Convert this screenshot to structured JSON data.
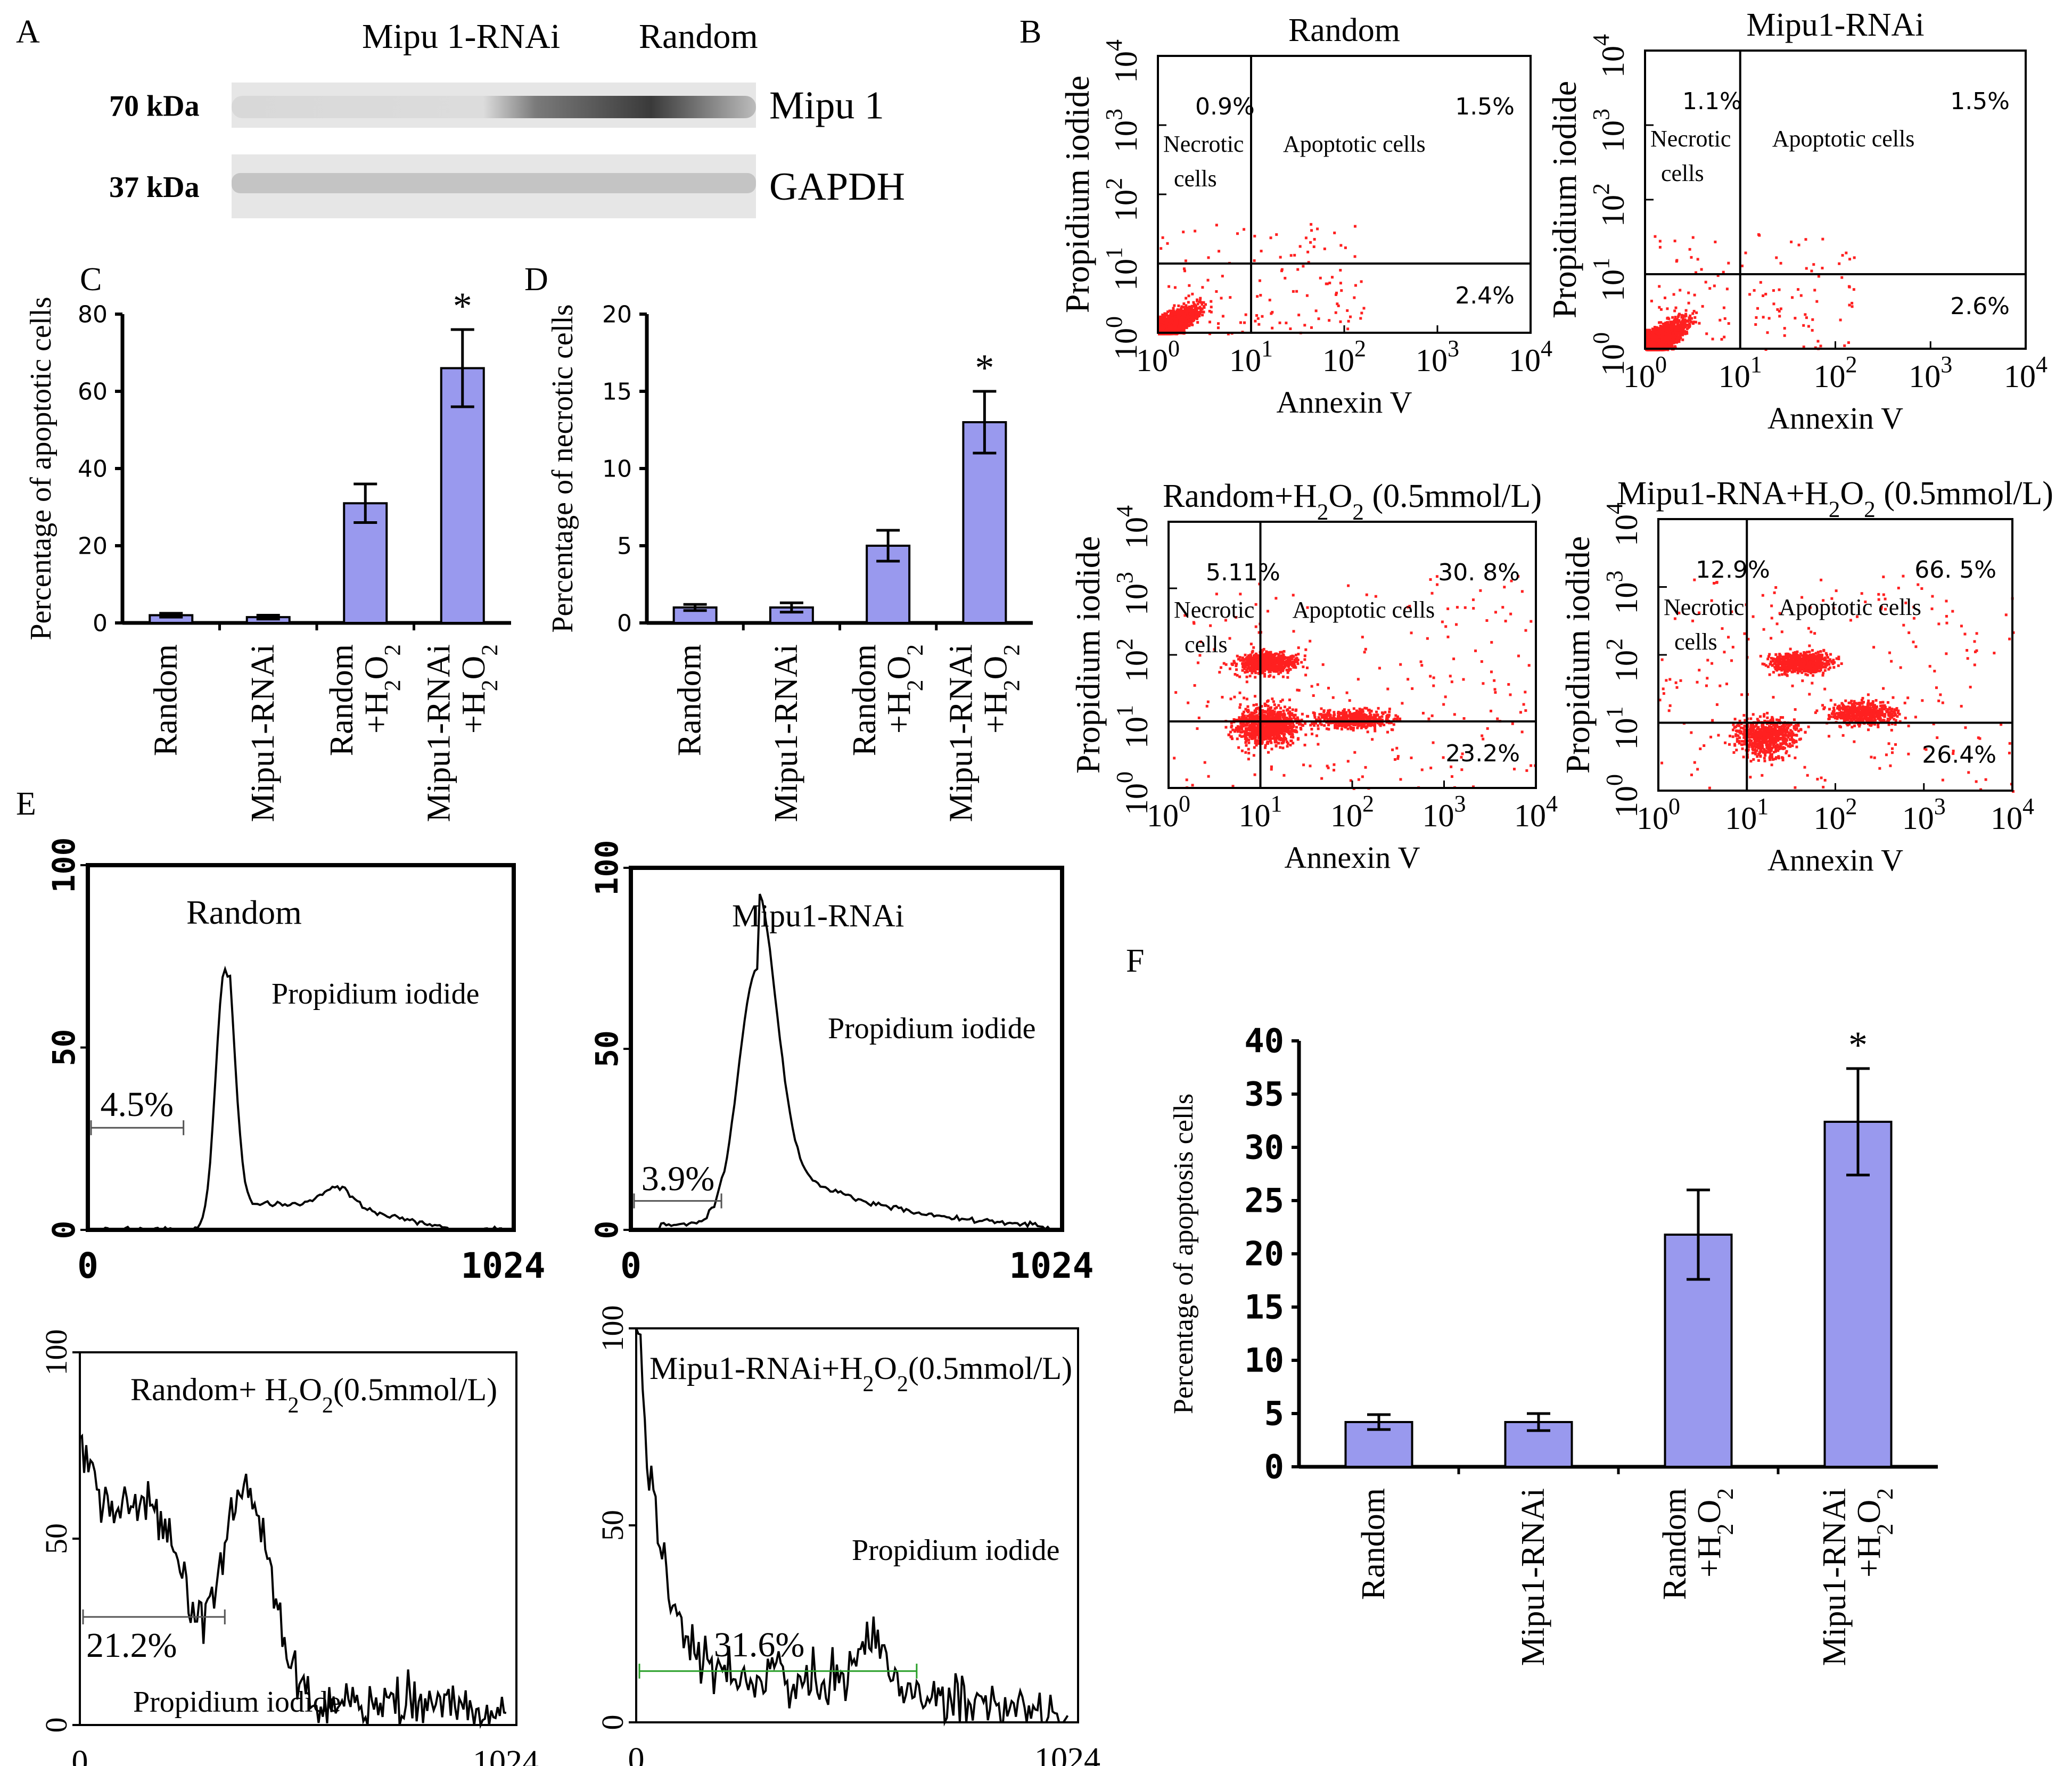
{
  "colors": {
    "bar": "#9999ee",
    "bar_stroke": "#000000",
    "dot": "#ff2020",
    "axis": "#000000",
    "blot_band": "#555555",
    "blot_bg": "#e6e6e6",
    "hist_gate": "#2aa02a"
  },
  "panel_letters": [
    "A",
    "B",
    "C",
    "D",
    "E",
    "F"
  ],
  "blot": {
    "lanes": [
      "Mipu 1-RNAi",
      "Random"
    ],
    "rows": [
      {
        "marker": "70 kDa",
        "protein": "Mipu 1"
      },
      {
        "marker": "37 kDa",
        "protein": "GAPDH"
      }
    ]
  },
  "chart_data": [
    {
      "id": "C",
      "type": "bar",
      "categories": [
        "Random",
        "Mipu1-RNAi",
        "Random +H2O2",
        "Mipu1-RNAi +H2O2"
      ],
      "values": [
        2,
        1.5,
        31,
        66
      ],
      "errors": [
        0.5,
        0.5,
        5,
        10
      ],
      "significance": [
        "",
        "",
        "",
        "*"
      ],
      "ylabel": "Percentage of apoptotic cells",
      "ylim": [
        0,
        80
      ],
      "yticks": [
        0,
        20,
        40,
        60,
        80
      ]
    },
    {
      "id": "D",
      "type": "bar",
      "categories": [
        "Random",
        "Mipu1-RNAi",
        "Random +H2O2",
        "Mipu1-RNAi +H2O2"
      ],
      "values": [
        1,
        1,
        5,
        13
      ],
      "errors": [
        0.2,
        0.3,
        1,
        2
      ],
      "significance": [
        "",
        "",
        "",
        "*"
      ],
      "ylabel": "Percentage of necrotic cells",
      "ylim": [
        0,
        20
      ],
      "yticks": [
        0,
        5,
        10,
        15,
        20
      ]
    },
    {
      "id": "F",
      "type": "bar",
      "categories": [
        "Random",
        "Mipu1-RNAi",
        "Random +H2O2",
        "Mipu1-RNAi +H2O2"
      ],
      "values": [
        4.2,
        4.2,
        21.8,
        32.4
      ],
      "errors": [
        0.7,
        0.8,
        4.2,
        5
      ],
      "significance": [
        "",
        "",
        "",
        "*"
      ],
      "ylabel": "Percentage of apoptosis cells",
      "ylim": [
        0,
        40
      ],
      "yticks": [
        0,
        5,
        10,
        15,
        20,
        25,
        30,
        35,
        40
      ]
    },
    {
      "id": "B",
      "type": "scatter",
      "xlabel": "Annexin V",
      "ylabel": "Propidium iodide",
      "xlim": [
        1,
        10000
      ],
      "ylim": [
        1,
        10000
      ],
      "log_decades": [
        "0",
        "1",
        "2",
        "3",
        "4"
      ],
      "quadrant_labels": [
        "Necrotic cells",
        "Apoptotic cells"
      ],
      "plots": [
        {
          "title": "Random",
          "necrotic": "0.9%",
          "late_apoptotic": "1.5%",
          "early_apoptotic": "2.4%"
        },
        {
          "title": "Mipu1-RNAi",
          "necrotic": "1.1%",
          "late_apoptotic": "1.5%",
          "early_apoptotic": "2.6%"
        },
        {
          "title": "Random+H2O2 (0.5mmol/L)",
          "necrotic": "5.11%",
          "late_apoptotic": "30. 8%",
          "early_apoptotic": "23.2%"
        },
        {
          "title": "Mipu1-RNA+H2O2 (0.5mmol/L)",
          "necrotic": "12.9%",
          "late_apoptotic": "66. 5%",
          "early_apoptotic": "26.4%"
        }
      ]
    },
    {
      "id": "E",
      "type": "line",
      "xlim": [
        0,
        1024
      ],
      "ylim": [
        0,
        100
      ],
      "xticks": [
        "0",
        "1024"
      ],
      "yticks": [
        "0",
        "50",
        "100"
      ],
      "xlabel": "Propidium iodide",
      "plots": [
        {
          "title": "Random",
          "sub_g1": "4.5%"
        },
        {
          "title": "Mipu1-RNAi",
          "sub_g1": "3.9%"
        },
        {
          "title": "Random+ H2O2(0.5mmol/L)",
          "sub_g1": "21.2%"
        },
        {
          "title": "Mipu1-RNAi+H2O2(0.5mmol/L)",
          "sub_g1": "31.6%"
        }
      ]
    }
  ]
}
